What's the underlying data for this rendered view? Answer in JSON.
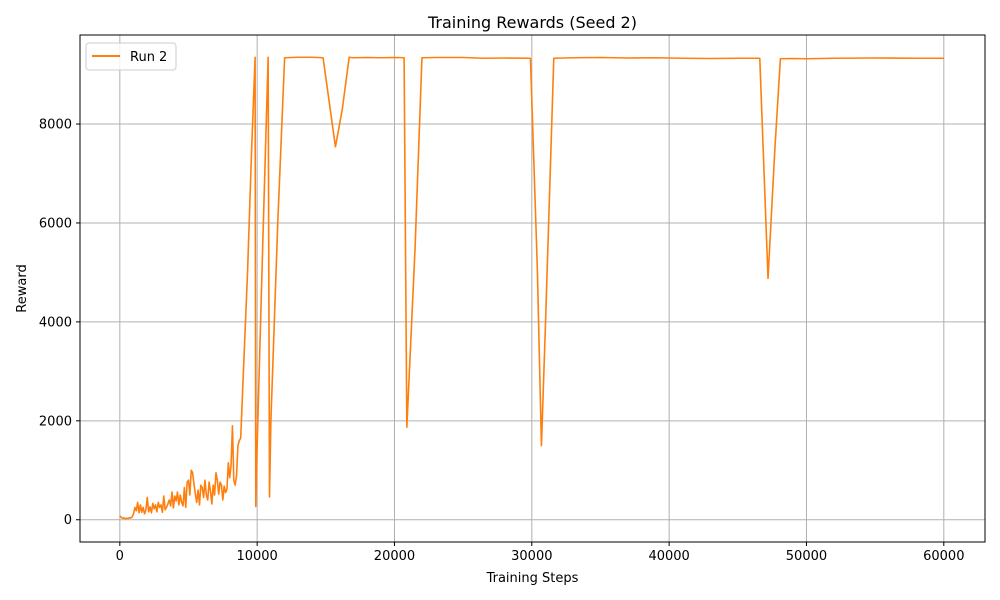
{
  "chart_data": {
    "type": "line",
    "title": "Training Rewards (Seed 2)",
    "xlabel": "Training Steps",
    "ylabel": "Reward",
    "xlim": [
      -2900,
      63000
    ],
    "ylim": [
      -450,
      9800
    ],
    "xticks": [
      0,
      10000,
      20000,
      30000,
      40000,
      50000,
      60000
    ],
    "yticks": [
      0,
      2000,
      4000,
      6000,
      8000
    ],
    "grid": true,
    "legend_position": "top-left",
    "series": [
      {
        "name": "Run 2",
        "color": "#ff7f0e",
        "x": [
          0,
          100,
          200,
          300,
          400,
          500,
          600,
          700,
          800,
          900,
          1000,
          1100,
          1200,
          1300,
          1400,
          1500,
          1600,
          1700,
          1800,
          1900,
          2000,
          2100,
          2200,
          2300,
          2400,
          2500,
          2600,
          2700,
          2800,
          2900,
          3000,
          3100,
          3200,
          3300,
          3400,
          3500,
          3600,
          3700,
          3800,
          3900,
          4000,
          4100,
          4200,
          4300,
          4400,
          4500,
          4600,
          4700,
          4800,
          4900,
          5000,
          5100,
          5200,
          5300,
          5400,
          5500,
          5600,
          5700,
          5800,
          5900,
          6000,
          6100,
          6200,
          6300,
          6400,
          6500,
          6600,
          6700,
          6800,
          6900,
          7000,
          7100,
          7200,
          7300,
          7400,
          7500,
          7600,
          7700,
          7800,
          7900,
          8000,
          8100,
          8200,
          8300,
          8400,
          8500,
          8600,
          8700,
          8800,
          9000,
          9300,
          9600,
          9850,
          9900,
          10000,
          10400,
          10800,
          10900,
          11000,
          11500,
          12000,
          13000,
          14000,
          14800,
          15700,
          16200,
          16700,
          17000,
          18000,
          19000,
          20000,
          20700,
          20900,
          21500,
          22000,
          23000,
          25000,
          26500,
          28000,
          29900,
          30400,
          30700,
          31000,
          31600,
          33000,
          35000,
          37000,
          39000,
          41000,
          43000,
          45000,
          46600,
          47200,
          47700,
          48100,
          49000,
          50000,
          52000,
          55000,
          58000,
          60000
        ],
        "y": [
          80,
          50,
          30,
          40,
          20,
          30,
          25,
          40,
          35,
          60,
          120,
          250,
          180,
          350,
          140,
          300,
          150,
          250,
          120,
          200,
          450,
          160,
          260,
          140,
          330,
          220,
          300,
          160,
          350,
          250,
          300,
          150,
          480,
          200,
          250,
          320,
          400,
          280,
          560,
          240,
          480,
          380,
          560,
          300,
          500,
          350,
          280,
          650,
          250,
          760,
          800,
          500,
          1000,
          950,
          720,
          520,
          350,
          600,
          300,
          700,
          650,
          450,
          800,
          500,
          400,
          760,
          580,
          320,
          700,
          500,
          950,
          800,
          520,
          760,
          700,
          400,
          680,
          550,
          620,
          1150,
          850,
          1100,
          1900,
          800,
          700,
          900,
          1500,
          1600,
          1650,
          3000,
          5000,
          7500,
          9350,
          270,
          1500,
          5500,
          9350,
          460,
          2000,
          6000,
          9340,
          9350,
          9350,
          9340,
          7540,
          8300,
          9350,
          9340,
          9345,
          9340,
          9345,
          9340,
          1870,
          5500,
          9340,
          9345,
          9345,
          9330,
          9335,
          9330,
          5100,
          1500,
          4000,
          9330,
          9340,
          9345,
          9335,
          9340,
          9330,
          9325,
          9330,
          9330,
          4880,
          7500,
          9320,
          9325,
          9320,
          9330,
          9335,
          9330,
          9330
        ]
      }
    ]
  }
}
